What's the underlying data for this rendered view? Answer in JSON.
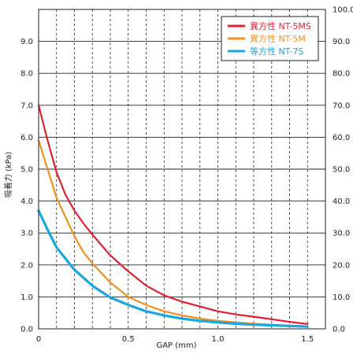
{
  "chart_data": {
    "type": "line",
    "title": "",
    "xlabel": "GAP (mm)",
    "ylabel": "吸着力 (kPa)",
    "xlim": [
      0,
      1.6
    ],
    "ylim": [
      0,
      10
    ],
    "y2lim": [
      0,
      100
    ],
    "grid": true,
    "legend_position": "top-right",
    "x_ticks": [
      0,
      0.5,
      1.0,
      1.5
    ],
    "x_tick_labels": [
      "0",
      "0.5",
      "1.0",
      "1.5"
    ],
    "x_minor_gridlines": [
      0.1,
      0.2,
      0.3,
      0.4,
      0.5,
      0.6,
      0.7,
      0.8,
      0.9,
      1.0,
      1.1,
      1.2,
      1.3,
      1.4,
      1.5
    ],
    "y_ticks": [
      0,
      1,
      2,
      3,
      4,
      5,
      6,
      7,
      8,
      9,
      10
    ],
    "y_tick_labels": [
      "0.0",
      "1.0",
      "2.0",
      "3.0",
      "4.0",
      "5.0",
      "6.0",
      "7.0",
      "8.0",
      "9.0",
      ""
    ],
    "y2_tick_labels": [
      "0.0",
      "10.0",
      "20.0",
      "30.0",
      "40.0",
      "50.0",
      "60.0",
      "70.0",
      "80.0",
      "90.0",
      "100.0"
    ],
    "series": [
      {
        "name": "異方性 NT-5MS",
        "color": "#e02030",
        "points": [
          [
            0,
            7.0
          ],
          [
            0.05,
            5.9
          ],
          [
            0.1,
            4.9
          ],
          [
            0.15,
            4.2
          ],
          [
            0.2,
            3.7
          ],
          [
            0.25,
            3.3
          ],
          [
            0.3,
            2.95
          ],
          [
            0.4,
            2.3
          ],
          [
            0.5,
            1.8
          ],
          [
            0.6,
            1.35
          ],
          [
            0.7,
            1.05
          ],
          [
            0.8,
            0.85
          ],
          [
            0.9,
            0.7
          ],
          [
            1.0,
            0.55
          ],
          [
            1.1,
            0.45
          ],
          [
            1.2,
            0.38
          ],
          [
            1.3,
            0.3
          ],
          [
            1.4,
            0.22
          ],
          [
            1.5,
            0.15
          ]
        ]
      },
      {
        "name": "異方性 NT-5M",
        "color": "#f0901e",
        "points": [
          [
            0,
            5.9
          ],
          [
            0.05,
            5.0
          ],
          [
            0.1,
            4.1
          ],
          [
            0.15,
            3.5
          ],
          [
            0.2,
            2.9
          ],
          [
            0.25,
            2.4
          ],
          [
            0.3,
            2.05
          ],
          [
            0.4,
            1.45
          ],
          [
            0.5,
            1.0
          ],
          [
            0.6,
            0.75
          ],
          [
            0.7,
            0.55
          ],
          [
            0.8,
            0.42
          ],
          [
            0.9,
            0.32
          ],
          [
            1.0,
            0.25
          ],
          [
            1.1,
            0.2
          ],
          [
            1.2,
            0.16
          ],
          [
            1.3,
            0.13
          ],
          [
            1.4,
            0.1
          ],
          [
            1.5,
            0.08
          ]
        ]
      },
      {
        "name": "等方性 NT-7S",
        "color": "#1aa6de",
        "points": [
          [
            0,
            3.7
          ],
          [
            0.05,
            3.1
          ],
          [
            0.1,
            2.55
          ],
          [
            0.15,
            2.2
          ],
          [
            0.2,
            1.85
          ],
          [
            0.25,
            1.6
          ],
          [
            0.3,
            1.35
          ],
          [
            0.4,
            0.98
          ],
          [
            0.5,
            0.75
          ],
          [
            0.6,
            0.55
          ],
          [
            0.7,
            0.42
          ],
          [
            0.8,
            0.32
          ],
          [
            0.9,
            0.25
          ],
          [
            1.0,
            0.2
          ],
          [
            1.1,
            0.16
          ],
          [
            1.2,
            0.13
          ],
          [
            1.3,
            0.11
          ],
          [
            1.4,
            0.09
          ],
          [
            1.5,
            0.07
          ]
        ]
      }
    ]
  }
}
